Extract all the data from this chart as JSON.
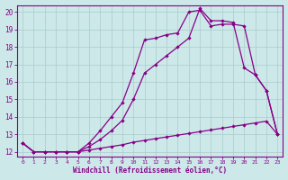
{
  "xlabel": "Windchill (Refroidissement éolien,°C)",
  "background_color": "#cce8e8",
  "grid_color": "#aacccc",
  "line_color": "#880088",
  "xlim_min": -0.5,
  "xlim_max": 23.5,
  "ylim_min": 11.75,
  "ylim_max": 20.4,
  "xticks": [
    0,
    1,
    2,
    3,
    4,
    5,
    6,
    7,
    8,
    9,
    10,
    11,
    12,
    13,
    14,
    15,
    16,
    17,
    18,
    19,
    20,
    21,
    22,
    23
  ],
  "yticks": [
    12,
    13,
    14,
    15,
    16,
    17,
    18,
    19,
    20
  ],
  "line1_x": [
    0,
    1,
    2,
    3,
    4,
    5,
    6,
    7,
    8,
    9,
    10,
    11,
    12,
    13,
    14,
    15,
    16,
    17,
    18,
    19,
    20,
    21,
    22,
    23
  ],
  "line1_y": [
    12.5,
    12.0,
    12.0,
    12.0,
    12.0,
    12.0,
    12.1,
    12.2,
    12.3,
    12.4,
    12.55,
    12.65,
    12.75,
    12.85,
    12.95,
    13.05,
    13.15,
    13.25,
    13.35,
    13.45,
    13.55,
    13.65,
    13.75,
    13.0
  ],
  "line2_x": [
    0,
    1,
    2,
    3,
    4,
    5,
    6,
    7,
    8,
    9,
    10,
    11,
    12,
    13,
    14,
    15,
    16,
    17,
    18,
    19,
    20,
    21,
    22,
    23
  ],
  "line2_y": [
    12.5,
    12.0,
    12.0,
    12.0,
    12.0,
    12.0,
    12.3,
    12.7,
    13.2,
    13.8,
    15.0,
    16.5,
    17.0,
    17.5,
    18.0,
    18.5,
    20.2,
    19.5,
    19.5,
    19.4,
    16.8,
    16.4,
    15.5,
    13.0
  ],
  "line3_x": [
    0,
    1,
    2,
    3,
    4,
    5,
    6,
    7,
    8,
    9,
    10,
    11,
    12,
    13,
    14,
    15,
    16,
    17,
    18,
    19,
    20,
    21,
    22,
    23
  ],
  "line3_y": [
    12.5,
    12.0,
    12.0,
    12.0,
    12.0,
    12.0,
    12.5,
    13.2,
    14.0,
    14.8,
    16.5,
    18.4,
    18.5,
    18.7,
    18.8,
    20.0,
    20.1,
    19.2,
    19.3,
    19.3,
    19.2,
    16.4,
    15.5,
    13.0
  ]
}
